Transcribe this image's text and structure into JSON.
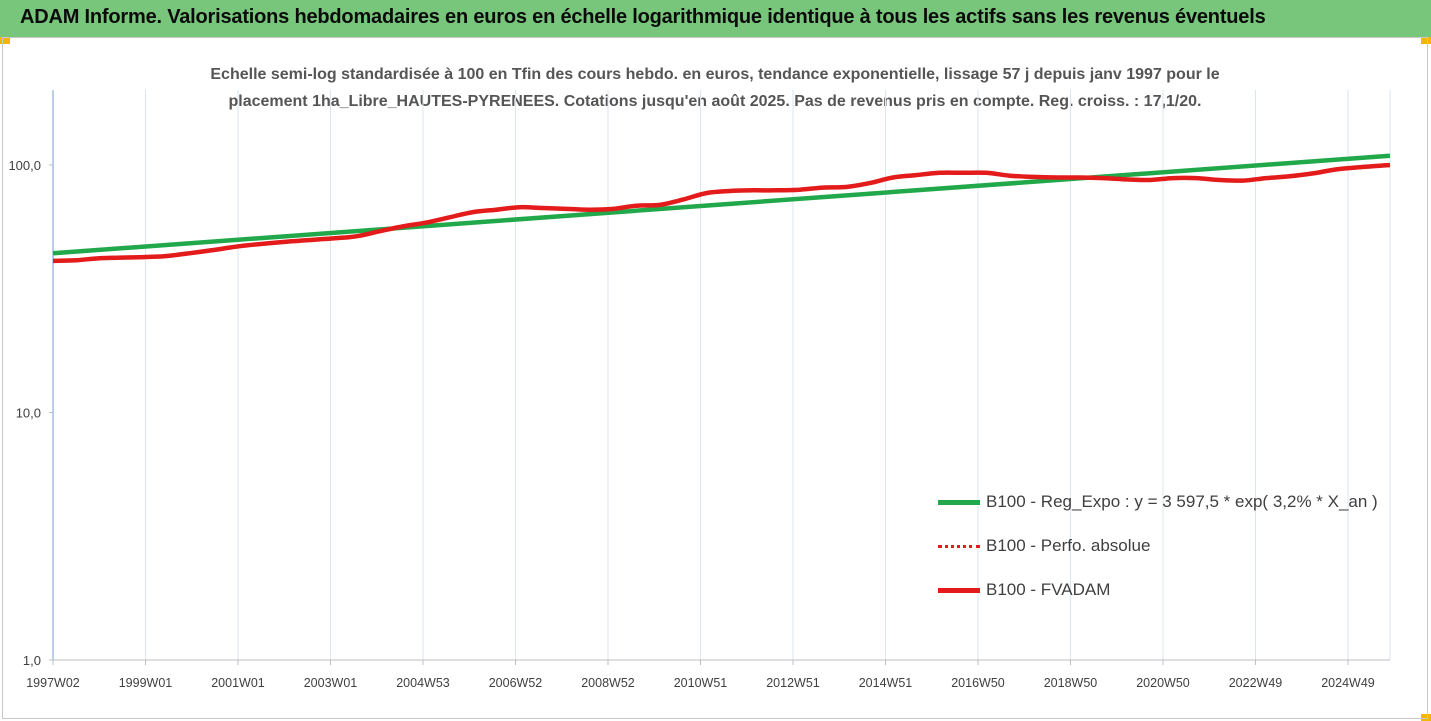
{
  "header": {
    "title": "ADAM Informe. Valorisations hebdomadaires en euros en échelle logarithmique identique à tous les actifs sans les revenus éventuels"
  },
  "colors": {
    "header_bg": "#78c67b",
    "corner_accent": "#f2b705",
    "regression": "#21a84a",
    "perf_absolue": "#e31b1b",
    "fvadam": "#e31b1b",
    "grid": "#dbe6f1",
    "axis": "#6f9fd0"
  },
  "chart_data": {
    "type": "line",
    "subtitle_line1": "Echelle semi-log standardisée à 100 en Tfin des cours hebdo. en euros, tendance exponentielle, lissage 57 j depuis janv 1997 pour le",
    "subtitle_line2": "placement 1ha_Libre_HAUTES-PYRENEES. Cotations jusqu'en août 2025. Pas de revenus pris en compte. Reg. croiss. : 17,1/20.",
    "y_scale": "log",
    "ylim": [
      1,
      200
    ],
    "y_ticks": [
      {
        "value": 1,
        "label": "1,0"
      },
      {
        "value": 10,
        "label": "10,0"
      },
      {
        "value": 100,
        "label": "100,0"
      }
    ],
    "x_ticks": [
      "1997W02",
      "1999W01",
      "2001W01",
      "2003W01",
      "2004W53",
      "2006W52",
      "2008W52",
      "2010W51",
      "2012W51",
      "2014W51",
      "2016W50",
      "2018W50",
      "2020W50",
      "2022W49",
      "2024W49"
    ],
    "xlim": [
      1997.0,
      2025.65
    ],
    "grid": "vertical",
    "legend_position": "bottom-right",
    "series": [
      {
        "name": "B100 - Reg_Expo : y = 3 597,5 * exp( 3,2% *  X_an )",
        "style": "solid-green",
        "x": [
          1997.0,
          2025.65
        ],
        "y": [
          44.0,
          109.0
        ]
      },
      {
        "name": "B100 - Perfo. absolue",
        "style": "dotted-red",
        "x": [
          1997.0,
          1997.5,
          1998.0,
          1999.0,
          1999.5,
          2000.5,
          2001.0,
          2002.0,
          2003.0,
          2003.5,
          2004.0,
          2004.5,
          2005.0,
          2005.5,
          2006.0,
          2006.5,
          2007.0,
          2007.5,
          2008.0,
          2008.5,
          2009.0,
          2009.5,
          2010.0,
          2010.5,
          2011.0,
          2011.5,
          2012.0,
          2012.5,
          2013.0,
          2013.5,
          2014.0,
          2014.5,
          2015.0,
          2015.5,
          2016.0,
          2016.5,
          2017.0,
          2017.5,
          2018.0,
          2018.5,
          2019.0,
          2019.5,
          2020.0,
          2020.5,
          2021.0,
          2021.5,
          2022.0,
          2022.5,
          2023.0,
          2023.5,
          2024.0,
          2024.5,
          2025.0,
          2025.65
        ],
        "y": [
          41.0,
          41.2,
          42.0,
          42.5,
          43.0,
          45.5,
          47.0,
          49.0,
          50.5,
          51.5,
          54.0,
          56.5,
          58.5,
          61.5,
          64.5,
          66.0,
          67.5,
          67.0,
          66.5,
          66.0,
          66.5,
          68.5,
          69.0,
          72.5,
          77.0,
          78.5,
          79.0,
          79.0,
          79.5,
          81.0,
          81.5,
          84.5,
          89.0,
          91.0,
          93.0,
          93.0,
          93.0,
          90.5,
          89.5,
          89.0,
          89.0,
          88.5,
          87.5,
          87.0,
          88.5,
          88.5,
          87.0,
          86.5,
          88.5,
          90.0,
          92.5,
          96.0,
          98.0,
          100.0
        ]
      },
      {
        "name": "B100 - FVADAM",
        "style": "solid-red",
        "x": [
          1997.0,
          1997.5,
          1998.0,
          1999.0,
          1999.5,
          2000.5,
          2001.0,
          2002.0,
          2003.0,
          2003.5,
          2004.0,
          2004.5,
          2005.0,
          2005.5,
          2006.0,
          2006.5,
          2007.0,
          2007.5,
          2008.0,
          2008.5,
          2009.0,
          2009.5,
          2010.0,
          2010.5,
          2011.0,
          2011.5,
          2012.0,
          2012.5,
          2013.0,
          2013.5,
          2014.0,
          2014.5,
          2015.0,
          2015.5,
          2016.0,
          2016.5,
          2017.0,
          2017.5,
          2018.0,
          2018.5,
          2019.0,
          2019.5,
          2020.0,
          2020.5,
          2021.0,
          2021.5,
          2022.0,
          2022.5,
          2023.0,
          2023.5,
          2024.0,
          2024.5,
          2025.0,
          2025.65
        ],
        "y": [
          41.0,
          41.2,
          42.0,
          42.5,
          43.0,
          45.5,
          47.0,
          49.0,
          50.5,
          51.5,
          54.0,
          56.5,
          58.5,
          61.5,
          64.5,
          66.0,
          67.5,
          67.0,
          66.5,
          66.0,
          66.5,
          68.5,
          69.0,
          72.5,
          77.0,
          78.5,
          79.0,
          79.0,
          79.5,
          81.0,
          81.5,
          84.5,
          89.0,
          91.0,
          93.0,
          93.0,
          93.0,
          90.5,
          89.5,
          89.0,
          89.0,
          88.5,
          87.5,
          87.0,
          88.5,
          88.5,
          87.0,
          86.5,
          88.5,
          90.0,
          92.5,
          96.0,
          98.0,
          100.0
        ]
      }
    ]
  }
}
